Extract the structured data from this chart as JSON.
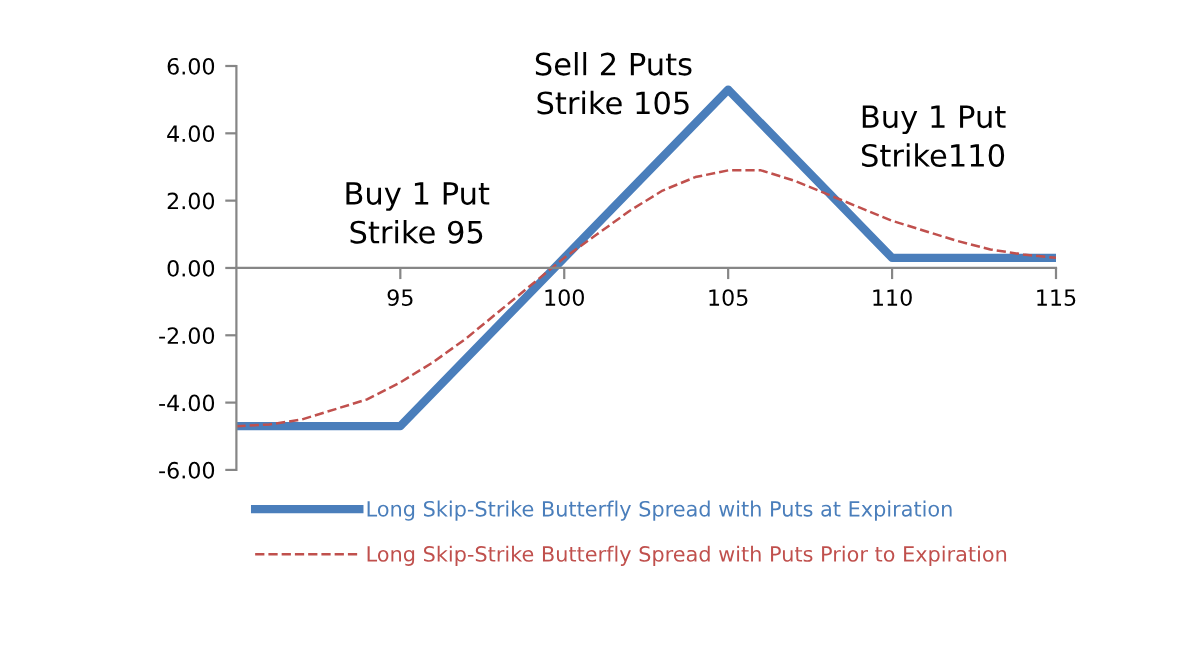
{
  "chart_data": {
    "type": "line",
    "xlim": [
      90,
      115
    ],
    "xticks": [
      95,
      100,
      105,
      110,
      115
    ],
    "ylim": [
      -6,
      6
    ],
    "yticks": [
      {
        "value": -6,
        "label": "-6.00"
      },
      {
        "value": -4,
        "label": "-4.00"
      },
      {
        "value": -2,
        "label": "-2.00"
      },
      {
        "value": 0,
        "label": "0.00"
      },
      {
        "value": 2,
        "label": "2.00"
      },
      {
        "value": 4,
        "label": "4.00"
      },
      {
        "value": 6,
        "label": "6.00"
      }
    ],
    "grid": false,
    "legend": "bottom",
    "annotations": [
      "Buy 1 Put\nStrike 95",
      "Sell 2 Puts\nStrike 105",
      "Buy 1 Put\nStrike110"
    ],
    "series": [
      {
        "name": "Long Skip-Strike Butterfly Spread with Puts at Expiration",
        "color": "#4a7ebb",
        "line_style": "solid",
        "x": [
          90,
          95,
          105,
          110,
          115
        ],
        "values": [
          -4.7,
          -4.7,
          5.3,
          0.3,
          0.3
        ]
      },
      {
        "name": "Long Skip-Strike Butterfly Spread with Puts Prior to Expiration",
        "color": "#c0504d",
        "line_style": "dashed",
        "x": [
          90,
          91,
          92,
          93,
          94,
          95,
          96,
          97,
          98,
          99,
          100,
          101,
          102,
          103,
          104,
          105,
          106,
          107,
          108,
          109,
          110,
          111,
          112,
          113,
          114,
          115
        ],
        "values": [
          -4.7,
          -4.65,
          -4.5,
          -4.2,
          -3.9,
          -3.4,
          -2.8,
          -2.1,
          -1.3,
          -0.5,
          0.3,
          1.0,
          1.7,
          2.3,
          2.7,
          2.9,
          2.9,
          2.6,
          2.2,
          1.8,
          1.4,
          1.1,
          0.8,
          0.55,
          0.4,
          0.3
        ]
      }
    ]
  }
}
